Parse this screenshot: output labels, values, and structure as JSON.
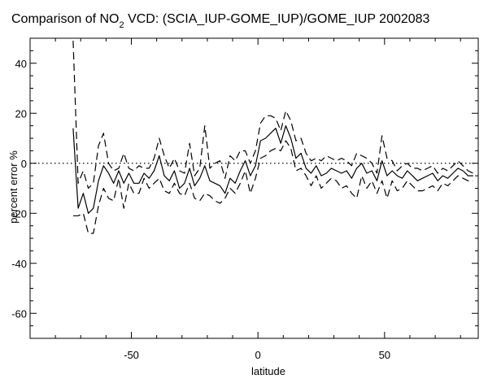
{
  "chart_data": {
    "type": "line",
    "title": "Comparison of NO",
    "title_sub": "2",
    "title_rest": " VCD: (SCIA_IUP-GOME_IUP)/GOME_IUP 2002083",
    "xlabel": "latitude",
    "ylabel": "percent error %",
    "xlim": [
      -90,
      87
    ],
    "ylim": [
      -70,
      50
    ],
    "xticks": [
      -50,
      0,
      50
    ],
    "yticks": [
      40,
      20,
      0,
      -20,
      -40,
      -60
    ],
    "reference_line": 0,
    "series": [
      {
        "style": "solid",
        "x": [
          -73,
          -71,
          -69,
          -67,
          -65,
          -63,
          -61,
          -59,
          -57,
          -55,
          -53,
          -51,
          -49,
          -47,
          -45,
          -43,
          -41,
          -39,
          -37,
          -35,
          -33,
          -31,
          -29,
          -27,
          -25,
          -23,
          -21,
          -19,
          -17,
          -15,
          -13,
          -11,
          -9,
          -7,
          -5,
          -3,
          -1,
          1,
          3,
          5,
          7,
          9,
          11,
          13,
          15,
          17,
          19,
          21,
          23,
          25,
          27,
          29,
          31,
          33,
          35,
          37,
          39,
          41,
          43,
          45,
          47,
          49,
          51,
          53,
          55,
          57,
          59,
          61,
          63,
          65,
          67,
          69,
          71,
          73,
          75,
          77,
          79,
          81,
          83,
          85
        ],
        "y": [
          14,
          -18,
          -12,
          -20,
          -18,
          -7,
          -1,
          -4,
          -8,
          -3,
          -8,
          -4,
          -8,
          -8,
          -4,
          -6,
          -3,
          3,
          -5,
          -7,
          -3,
          -10,
          -8,
          -2,
          -9,
          -6,
          -1,
          -7,
          -8,
          -9,
          -12,
          -6,
          -8,
          -3,
          1,
          -5,
          -1,
          9,
          10,
          12,
          14,
          8,
          15,
          10,
          2,
          4,
          -2,
          -4,
          -1,
          -5,
          -4,
          -2,
          -3,
          -4,
          -3,
          -6,
          -2,
          0,
          -4,
          -3,
          -7,
          1,
          -5,
          -3,
          -5,
          -6,
          -3,
          -5,
          -7,
          -6,
          -5,
          -4,
          -7,
          -5,
          -6,
          -4,
          -2,
          -3,
          -5,
          -5
        ]
      },
      {
        "style": "dashed",
        "x": [
          -73,
          -71,
          -69,
          -67,
          -65,
          -63,
          -61,
          -59,
          -57,
          -55,
          -53,
          -51,
          -49,
          -47,
          -45,
          -43,
          -41,
          -39,
          -37,
          -35,
          -33,
          -31,
          -29,
          -27,
          -25,
          -23,
          -21,
          -19,
          -17,
          -15,
          -13,
          -11,
          -9,
          -7,
          -5,
          -3,
          -1,
          1,
          3,
          5,
          7,
          9,
          11,
          13,
          15,
          17,
          19,
          21,
          23,
          25,
          27,
          29,
          31,
          33,
          35,
          37,
          39,
          41,
          43,
          45,
          47,
          49,
          51,
          53,
          55,
          57,
          59,
          61,
          63,
          65,
          67,
          69,
          71,
          73,
          75,
          77,
          79,
          81,
          83,
          85
        ],
        "y": [
          49,
          -8,
          -3,
          -10,
          -8,
          7,
          12,
          0,
          -3,
          -2,
          4,
          -2,
          -3,
          -1,
          -2,
          -2,
          2,
          10,
          3,
          -2,
          2,
          -3,
          -4,
          8,
          -5,
          -2,
          15,
          -2,
          0,
          1,
          -6,
          3,
          1,
          5,
          5,
          0,
          5,
          16,
          19,
          19,
          18,
          13,
          21,
          17,
          9,
          10,
          4,
          1,
          2,
          1,
          3,
          2,
          1,
          2,
          1,
          -1,
          4,
          3,
          2,
          0,
          -4,
          11,
          2,
          1,
          -3,
          -1,
          0,
          -2,
          -2,
          -3,
          -2,
          -1,
          -4,
          -2,
          -3,
          -1,
          1,
          -1,
          -3,
          -4
        ]
      },
      {
        "style": "dashed",
        "x": [
          -73,
          -71,
          -69,
          -67,
          -65,
          -63,
          -61,
          -59,
          -57,
          -55,
          -53,
          -51,
          -49,
          -47,
          -45,
          -43,
          -41,
          -39,
          -37,
          -35,
          -33,
          -31,
          -29,
          -27,
          -25,
          -23,
          -21,
          -19,
          -17,
          -15,
          -13,
          -11,
          -9,
          -7,
          -5,
          -3,
          -1,
          1,
          3,
          5,
          7,
          9,
          11,
          13,
          15,
          17,
          19,
          21,
          23,
          25,
          27,
          29,
          31,
          33,
          35,
          37,
          39,
          41,
          43,
          45,
          47,
          49,
          51,
          53,
          55,
          57,
          59,
          61,
          63,
          65,
          67,
          69,
          71,
          73,
          75,
          77,
          79,
          81,
          83,
          85
        ],
        "y": [
          -21,
          -21,
          -20,
          -28,
          -28,
          -17,
          -10,
          -14,
          -15,
          -6,
          -18,
          -8,
          -12,
          -12,
          -6,
          -10,
          -8,
          -6,
          -11,
          -12,
          -8,
          -12,
          -13,
          -8,
          -14,
          -15,
          -12,
          -13,
          -15,
          -16,
          -14,
          -10,
          -12,
          -8,
          -3,
          -12,
          -6,
          2,
          3,
          5,
          6,
          5,
          9,
          6,
          -3,
          -2,
          -5,
          -9,
          -5,
          -10,
          -8,
          -6,
          -7,
          -10,
          -9,
          -12,
          -14,
          -5,
          -10,
          -7,
          -12,
          -7,
          -14,
          -7,
          -11,
          -10,
          -7,
          -9,
          -11,
          -11,
          -10,
          -9,
          -11,
          -8,
          -9,
          -7,
          -5,
          -6,
          -7,
          -7
        ]
      }
    ]
  }
}
